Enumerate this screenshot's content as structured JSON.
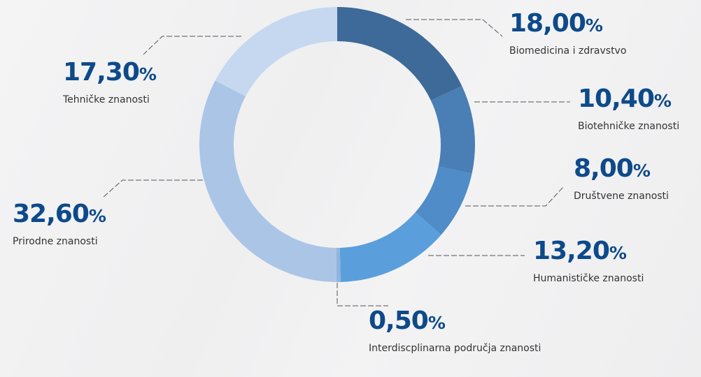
{
  "chart_data": {
    "type": "donut",
    "categories": [
      "Biomedicina i zdravstvo",
      "Biotehničke znanosti",
      "Društvene znanosti",
      "Humanističke znanosti",
      "Interdiscplinarna područja znanosti",
      "Prirodne znanosti",
      "Tehničke znanosti"
    ],
    "values": [
      18,
      10.4,
      8,
      13.2,
      0.5,
      32.6,
      17.3
    ],
    "value_labels": [
      "18,00",
      "10,40",
      "8,00",
      "13,20",
      "0,50",
      "32,60",
      "17,30"
    ],
    "unit": "%",
    "colors": [
      "#3d6a98",
      "#4a7fb5",
      "#4f8cc8",
      "#5a9fdc",
      "#8fb4dd",
      "#abc5e6",
      "#c6d8ef"
    ]
  }
}
